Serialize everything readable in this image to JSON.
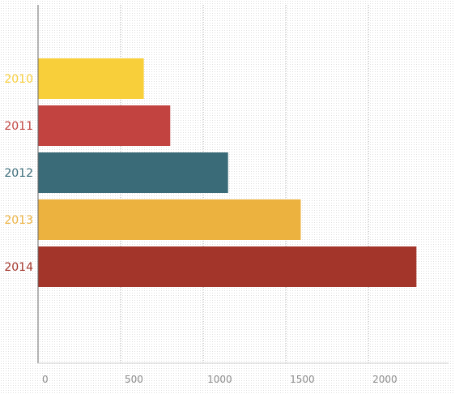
{
  "chart_data": {
    "type": "bar",
    "orientation": "horizontal",
    "title": "",
    "xlabel": "",
    "ylabel": "",
    "categories": [
      "2010",
      "2011",
      "2012",
      "2013",
      "2014"
    ],
    "values": [
      640,
      800,
      1150,
      1590,
      2290
    ],
    "colors": [
      "#f8cf3a",
      "#c24340",
      "#3a6b78",
      "#ecb23f",
      "#a3352a"
    ],
    "xlim": [
      0,
      2450
    ],
    "xticks": [
      0,
      500,
      1000,
      1500,
      2000
    ],
    "xtick_labels": [
      "0",
      "500",
      "1000",
      "1500",
      "2000"
    ],
    "grid": true,
    "legend": "none"
  }
}
